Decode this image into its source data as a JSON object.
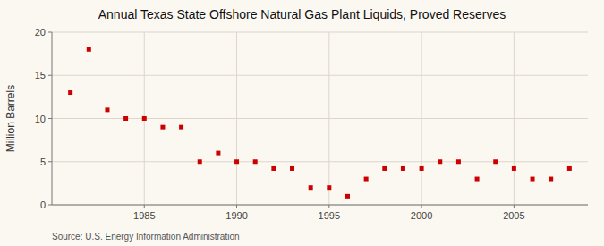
{
  "chart_data": {
    "type": "scatter",
    "title": "Annual Texas State Offshore Natural Gas Plant Liquids, Proved Reserves",
    "ylabel": "Million Barrels",
    "annotations": [
      "Source: U.S. Energy Information Administration"
    ],
    "x": [
      1981,
      1982,
      1983,
      1984,
      1985,
      1986,
      1987,
      1988,
      1989,
      1990,
      1991,
      1992,
      1993,
      1994,
      1995,
      1996,
      1997,
      1998,
      1999,
      2000,
      2001,
      2002,
      2003,
      2004,
      2005,
      2006,
      2007,
      2008
    ],
    "values": [
      13.0,
      18.0,
      11.0,
      10.0,
      10.0,
      9.0,
      9.0,
      5.0,
      6.0,
      5.0,
      5.0,
      4.2,
      4.2,
      2.0,
      2.0,
      1.0,
      3.0,
      4.2,
      4.2,
      4.2,
      5.0,
      5.0,
      3.0,
      5.0,
      4.2,
      3.0,
      3.0,
      4.2
    ],
    "color": "#cc0000",
    "marker": "square",
    "xlim": [
      1980,
      2009
    ],
    "ylim": [
      0,
      20
    ],
    "xticks": [
      1985,
      1990,
      1995,
      2000,
      2005
    ],
    "yticks": [
      0,
      5,
      10,
      15,
      20
    ],
    "grid": true
  }
}
